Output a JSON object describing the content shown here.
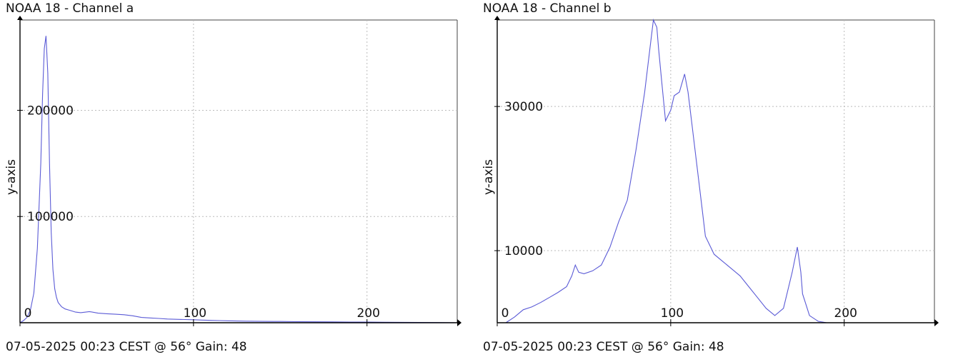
{
  "panels": [
    {
      "title": "NOAA 18 - Channel a",
      "footer": "07-05-2025 00:23 CEST @ 56° Gain: 48",
      "ylabel": "y-axis"
    },
    {
      "title": "NOAA 18 - Channel b",
      "footer": "07-05-2025 00:23 CEST @ 56° Gain: 48",
      "ylabel": "y-axis"
    }
  ],
  "chart_data": [
    {
      "type": "line",
      "title": "NOAA 18 - Channel a",
      "ylabel": "y-axis",
      "xlim": [
        0,
        252
      ],
      "ylim": [
        0,
        285000
      ],
      "xticks": [
        0,
        100,
        200
      ],
      "yticks": [
        100000,
        200000
      ],
      "tick_labels_x": [
        "0",
        "100",
        "200"
      ],
      "tick_labels_y": [
        "100000",
        "200000"
      ],
      "grid": true,
      "line_color": "#5b5bd6",
      "series": [
        {
          "x": [
            0,
            2,
            4,
            6,
            8,
            10,
            12,
            13,
            14,
            15,
            16,
            17,
            18,
            19,
            20,
            21,
            22,
            24,
            26,
            28,
            30,
            32,
            35,
            40,
            45,
            50,
            55,
            60,
            65,
            70,
            75,
            80,
            85,
            90,
            95,
            100,
            105,
            110,
            115,
            120,
            125,
            130,
            135,
            140,
            150,
            160,
            170,
            180,
            190,
            200,
            210,
            220,
            230,
            240,
            252
          ],
          "y": [
            0,
            2000,
            5000,
            12000,
            28000,
            70000,
            150000,
            215000,
            258000,
            270000,
            235000,
            150000,
            85000,
            50000,
            32000,
            24000,
            19000,
            15000,
            13000,
            12000,
            11000,
            10000,
            9500,
            10500,
            9000,
            8500,
            8000,
            7500,
            6500,
            5000,
            4500,
            4000,
            3500,
            3200,
            3000,
            2800,
            2500,
            2200,
            2000,
            1800,
            1600,
            1500,
            1400,
            1300,
            1200,
            1000,
            900,
            800,
            700,
            600,
            500,
            400,
            300,
            200,
            0
          ]
        }
      ]
    },
    {
      "type": "line",
      "title": "NOAA 18 - Channel b",
      "ylabel": "y-axis",
      "xlim": [
        0,
        252
      ],
      "ylim": [
        0,
        42000
      ],
      "xticks": [
        0,
        100,
        200
      ],
      "yticks": [
        10000,
        30000
      ],
      "tick_labels_x": [
        "0",
        "100",
        "200"
      ],
      "tick_labels_y": [
        "10000",
        "30000"
      ],
      "grid": true,
      "line_color": "#5b5bd6",
      "series": [
        {
          "x": [
            5,
            10,
            15,
            20,
            25,
            30,
            35,
            40,
            43,
            45,
            47,
            50,
            55,
            60,
            65,
            70,
            75,
            80,
            85,
            88,
            90,
            92,
            93,
            95,
            97,
            100,
            102,
            105,
            108,
            110,
            112,
            115,
            118,
            120,
            125,
            130,
            135,
            140,
            145,
            150,
            155,
            160,
            165,
            170,
            173,
            175,
            176,
            178,
            180,
            185,
            190,
            195,
            200,
            205,
            210,
            215,
            220,
            225,
            230,
            235,
            240,
            245,
            252
          ],
          "y": [
            0,
            800,
            1800,
            2200,
            2800,
            3500,
            4200,
            5000,
            6500,
            8000,
            7000,
            6800,
            7200,
            8000,
            10500,
            14000,
            17000,
            24000,
            32000,
            38000,
            42000,
            41000,
            38000,
            33000,
            28000,
            29500,
            31500,
            32000,
            34500,
            32000,
            28000,
            22000,
            16000,
            12000,
            9500,
            8500,
            7500,
            6500,
            5000,
            3500,
            2000,
            1000,
            2000,
            7000,
            10500,
            7000,
            4000,
            2500,
            1000,
            200,
            0,
            0,
            0,
            0,
            0,
            0,
            0,
            0,
            0,
            0,
            0,
            0,
            0
          ]
        }
      ]
    }
  ]
}
